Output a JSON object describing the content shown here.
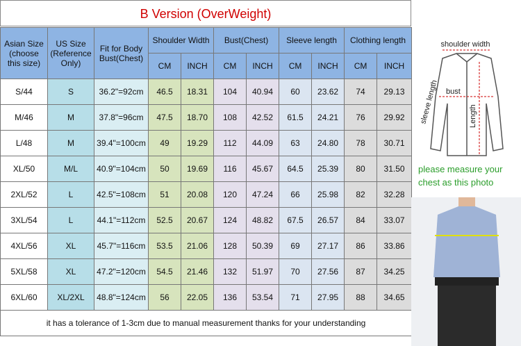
{
  "title": "B Version (OverWeight)",
  "table": {
    "header": {
      "asian": "Asian Size (choose this size)",
      "us": "US Size (Reference Only)",
      "fit": "Fit for Body Bust(Chest)",
      "groups": [
        "Shoulder Width",
        "Bust(Chest)",
        "Sleeve length",
        "Clothing length"
      ],
      "units": [
        "CM",
        "INCH"
      ]
    },
    "rows": [
      [
        "S/44",
        "S",
        "36.2\"=92cm",
        "46.5",
        "18.31",
        "104",
        "40.94",
        "60",
        "23.62",
        "74",
        "29.13"
      ],
      [
        "M/46",
        "M",
        "37.8\"=96cm",
        "47.5",
        "18.70",
        "108",
        "42.52",
        "61.5",
        "24.21",
        "76",
        "29.92"
      ],
      [
        "L/48",
        "M",
        "39.4\"=100cm",
        "49",
        "19.29",
        "112",
        "44.09",
        "63",
        "24.80",
        "78",
        "30.71"
      ],
      [
        "XL/50",
        "M/L",
        "40.9\"=104cm",
        "50",
        "19.69",
        "116",
        "45.67",
        "64.5",
        "25.39",
        "80",
        "31.50"
      ],
      [
        "2XL/52",
        "L",
        "42.5\"=108cm",
        "51",
        "20.08",
        "120",
        "47.24",
        "66",
        "25.98",
        "82",
        "32.28"
      ],
      [
        "3XL/54",
        "L",
        "44.1\"=112cm",
        "52.5",
        "20.67",
        "124",
        "48.82",
        "67.5",
        "26.57",
        "84",
        "33.07"
      ],
      [
        "4XL/56",
        "XL",
        "45.7\"=116cm",
        "53.5",
        "21.06",
        "128",
        "50.39",
        "69",
        "27.17",
        "86",
        "33.86"
      ],
      [
        "5XL/58",
        "XL",
        "47.2\"=120cm",
        "54.5",
        "21.46",
        "132",
        "51.97",
        "70",
        "27.56",
        "87",
        "34.25"
      ],
      [
        "6XL/60",
        "XL/2XL",
        "48.8\"=124cm",
        "56",
        "22.05",
        "136",
        "53.54",
        "71",
        "27.95",
        "88",
        "34.65"
      ]
    ],
    "note": "it has a tolerance of 1-3cm due to manual measurement thanks for your understanding"
  },
  "illustration": {
    "labels": [
      "shoulder width",
      "bust",
      "sleeve length",
      "Length"
    ],
    "caption": "please measure your chest as this photo"
  }
}
